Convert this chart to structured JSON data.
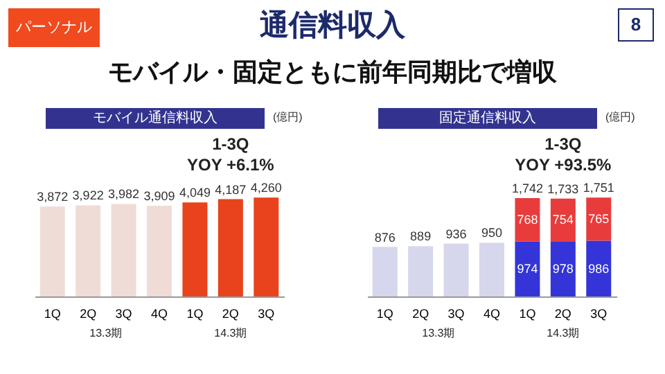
{
  "chart_data": [
    {
      "type": "bar",
      "title": "モバイル通信料収入",
      "categories": [
        "1Q",
        "2Q",
        "3Q",
        "4Q",
        "1Q",
        "2Q",
        "3Q"
      ],
      "values": [
        3872,
        3922,
        3982,
        3909,
        4049,
        4187,
        4260
      ],
      "colors": [
        "#f0dcd6",
        "#f0dcd6",
        "#f0dcd6",
        "#f0dcd6",
        "#e8431c",
        "#e8431c",
        "#e8431c"
      ],
      "value_labels": [
        "3,872",
        "3,922",
        "3,982",
        "3,909",
        "4,049",
        "4,187",
        "4,260"
      ],
      "annotations": [
        "パーソナル",
        "8",
        "通信料収入",
        "モバイル・固定ともに前年同期比で増収",
        "(億円)",
        "1-3Q",
        "YOY +6.1%",
        "13.3期",
        "14.3期"
      ]
    },
    {
      "type": "bar",
      "title": "固定通信料収入",
      "categories": [
        "1Q",
        "2Q",
        "3Q",
        "4Q",
        "1Q",
        "2Q",
        "3Q"
      ],
      "stacked": true,
      "series": [
        {
          "colors": [
            "#d6d6ec",
            "#d6d6ec",
            "#d6d6ec",
            "#d6d6ec",
            "#3434d8",
            "#3434d8",
            "#3434d8"
          ],
          "values": [
            876,
            889,
            936,
            950,
            974,
            978,
            986
          ],
          "value_labels": [
            null,
            null,
            null,
            null,
            "974",
            "978",
            "986"
          ]
        },
        {
          "color": "#e83c3c",
          "values": [
            null,
            null,
            null,
            null,
            768,
            754,
            765
          ],
          "value_labels": [
            null,
            null,
            null,
            null,
            "768",
            "754",
            "765"
          ]
        }
      ],
      "totals": [
        "876",
        "889",
        "936",
        "950",
        "1,742",
        "1,733",
        "1,751"
      ],
      "annotations": [
        "(億円)",
        "1-3Q",
        "YOY +93.5%",
        "13.3期",
        "14.3期"
      ]
    }
  ]
}
